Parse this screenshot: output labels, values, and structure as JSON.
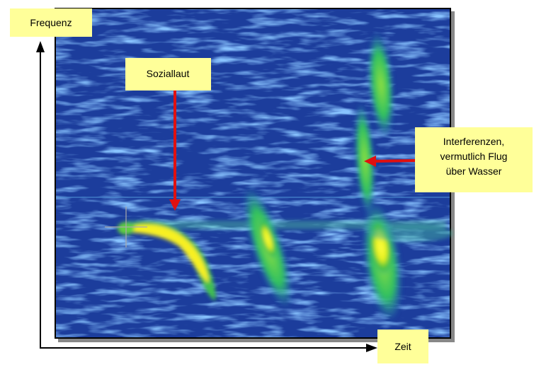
{
  "labels": {
    "frequency": "Frequenz",
    "time": "Zeit"
  },
  "annotations": [
    {
      "lines": [
        "Soziallaut"
      ]
    },
    {
      "lines": [
        "Interferenzen,",
        "vermutlich Flug",
        "über Wasser"
      ]
    }
  ]
}
